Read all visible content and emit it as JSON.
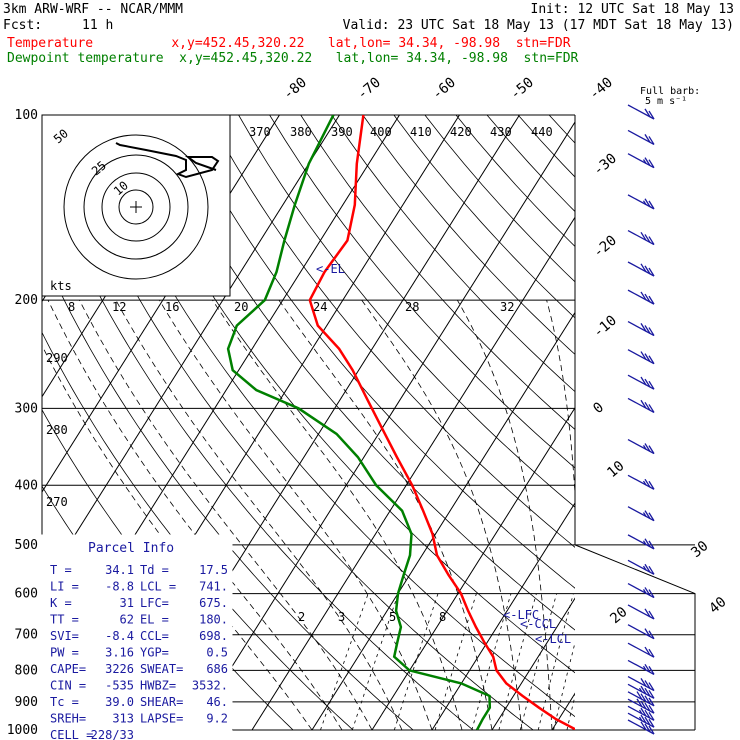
{
  "header": {
    "model": "3km ARW-WRF -- NCAR/MMM",
    "init": "Init: 12 UTC Sat 18 May 13",
    "fcst_label": "Fcst:",
    "fcst_value": "11 h",
    "valid": "Valid: 23 UTC Sat 18 May 13 (17 MDT Sat 18 May 13)",
    "temp_line": "Temperature          x,y=452.45,320.22   lat,lon= 34.34, -98.98  stn=FDR",
    "dew_line": "Dewpoint temperature  x,y=452.45,320.22   lat,lon= 34.34, -98.98  stn=FDR"
  },
  "colors": {
    "temperature": "#ff0000",
    "dewpoint": "#008000",
    "labels_blue": "#1a1aa0",
    "grid": "#000000"
  },
  "parcel_info": {
    "title": "Parcel Info",
    "rows": [
      {
        "l": "T  =",
        "lv": "34.1",
        "r": "Td =",
        "rv": "17.5"
      },
      {
        "l": "LI =",
        "lv": "-8.8",
        "r": "LCL =",
        "rv": "741."
      },
      {
        "l": "K  =",
        "lv": "31",
        "r": "LFC=",
        "rv": "675."
      },
      {
        "l": "TT =",
        "lv": "62",
        "r": "EL =",
        "rv": "180."
      },
      {
        "l": "SVI=",
        "lv": "-8.4",
        "r": "CCL=",
        "rv": "698."
      },
      {
        "l": "PW =",
        "lv": "3.16",
        "r": "YGP=",
        "rv": "0.5"
      },
      {
        "l": "CAPE=",
        "lv": "3226",
        "r": "SWEAT=",
        "rv": "686"
      },
      {
        "l": "CIN =",
        "lv": "-535",
        "r": "HWBZ=",
        "rv": "3532."
      },
      {
        "l": "Tc =",
        "lv": "39.0",
        "r": "SHEAR=",
        "rv": "46."
      },
      {
        "l": "SREH=",
        "lv": "313",
        "r": "LAPSE=",
        "rv": "9.2"
      },
      {
        "l": "CELL =",
        "lv": "228/33",
        "r": "",
        "rv": ""
      }
    ]
  },
  "hodograph": {
    "speed_axis_label": "kts",
    "ring_labels": [
      "50",
      "25",
      "10"
    ]
  },
  "wind_barb_legend": {
    "line1": "Full barb:",
    "line2": "5 m s⁻¹"
  },
  "chart_data": {
    "type": "line",
    "title": "",
    "pressure_levels": [
      100,
      200,
      300,
      400,
      500,
      600,
      700,
      800,
      900,
      1000
    ],
    "pressure_labels": [
      "100",
      "200",
      "300",
      "400",
      "500",
      "600",
      "700",
      "800",
      "900",
      "1000"
    ],
    "isotherm_labels_top": [
      "-80",
      "-70",
      "-60",
      "-50",
      "-40"
    ],
    "isotherm_labels_right": [
      "-30",
      "-20",
      "-10",
      "0",
      "10",
      "20",
      "30",
      "40"
    ],
    "theta_labels_top": [
      "370",
      "380",
      "390",
      "400",
      "410",
      "420",
      "430",
      "440"
    ],
    "theta_labels_left": [
      "290",
      "280",
      "270"
    ],
    "mixing_ratio_labels_upper": [
      "8",
      "12",
      "16",
      "20",
      "24",
      "28",
      "32"
    ],
    "mixing_ratio_labels_lower": [
      "2",
      "3",
      "5",
      "8"
    ],
    "level_markers": [
      {
        "name": "EL",
        "label": "<-EL",
        "p": 180
      },
      {
        "name": "LFC",
        "label": "<-LFC",
        "p": 675
      },
      {
        "name": "CCL",
        "label": "<-CCL",
        "p": 698
      },
      {
        "name": "LCL",
        "label": "<-LCL",
        "p": 741
      }
    ],
    "series": [
      {
        "name": "Temperature",
        "color": "#ff0000",
        "points": [
          [
            1000,
            34.1
          ],
          [
            960,
            29.5
          ],
          [
            920,
            25.5
          ],
          [
            880,
            21.5
          ],
          [
            840,
            17.5
          ],
          [
            800,
            14.5
          ],
          [
            760,
            12.5
          ],
          [
            720,
            9.5
          ],
          [
            680,
            6.5
          ],
          [
            640,
            3.5
          ],
          [
            600,
            0.5
          ],
          [
            560,
            -3.5
          ],
          [
            520,
            -7.5
          ],
          [
            480,
            -10.5
          ],
          [
            440,
            -14.5
          ],
          [
            400,
            -19
          ],
          [
            360,
            -24.5
          ],
          [
            320,
            -30.5
          ],
          [
            290,
            -35.5
          ],
          [
            260,
            -41
          ],
          [
            240,
            -45.5
          ],
          [
            220,
            -51.5
          ],
          [
            200,
            -55.5
          ],
          [
            180,
            -56
          ],
          [
            160,
            -55.5
          ],
          [
            140,
            -58
          ],
          [
            120,
            -62
          ],
          [
            100,
            -66
          ]
        ]
      },
      {
        "name": "Dewpoint temperature",
        "color": "#008000",
        "points": [
          [
            1000,
            17.5
          ],
          [
            960,
            17.3
          ],
          [
            920,
            17.3
          ],
          [
            880,
            16
          ],
          [
            840,
            10
          ],
          [
            800,
            0
          ],
          [
            760,
            -4
          ],
          [
            720,
            -5
          ],
          [
            680,
            -6
          ],
          [
            640,
            -8.5
          ],
          [
            600,
            -10
          ],
          [
            560,
            -11
          ],
          [
            520,
            -12
          ],
          [
            480,
            -14
          ],
          [
            440,
            -18
          ],
          [
            400,
            -25
          ],
          [
            360,
            -31
          ],
          [
            330,
            -37
          ],
          [
            300,
            -46
          ],
          [
            280,
            -55
          ],
          [
            260,
            -61
          ],
          [
            240,
            -64
          ],
          [
            220,
            -65
          ],
          [
            200,
            -63
          ],
          [
            180,
            -64
          ],
          [
            160,
            -66
          ],
          [
            140,
            -68
          ],
          [
            120,
            -70
          ],
          [
            100,
            -71
          ]
        ]
      }
    ],
    "wind_barbs": [
      {
        "p": 1000,
        "speed": 30
      },
      {
        "p": 975,
        "speed": 35
      },
      {
        "p": 950,
        "speed": 35
      },
      {
        "p": 925,
        "speed": 40
      },
      {
        "p": 900,
        "speed": 40
      },
      {
        "p": 875,
        "speed": 35
      },
      {
        "p": 850,
        "speed": 30
      },
      {
        "p": 800,
        "speed": 25
      },
      {
        "p": 750,
        "speed": 20
      },
      {
        "p": 700,
        "speed": 20
      },
      {
        "p": 650,
        "speed": 20
      },
      {
        "p": 600,
        "speed": 25
      },
      {
        "p": 550,
        "speed": 25
      },
      {
        "p": 500,
        "speed": 25
      },
      {
        "p": 450,
        "speed": 25
      },
      {
        "p": 400,
        "speed": 25
      },
      {
        "p": 350,
        "speed": 25
      },
      {
        "p": 300,
        "speed": 30
      },
      {
        "p": 275,
        "speed": 30
      },
      {
        "p": 250,
        "speed": 30
      },
      {
        "p": 225,
        "speed": 30
      },
      {
        "p": 200,
        "speed": 30
      },
      {
        "p": 180,
        "speed": 30
      },
      {
        "p": 160,
        "speed": 30
      },
      {
        "p": 140,
        "speed": 25
      },
      {
        "p": 120,
        "speed": 25
      },
      {
        "p": 110,
        "speed": 20
      },
      {
        "p": 100,
        "speed": 20
      }
    ],
    "xlabel": "",
    "ylabel": ""
  }
}
